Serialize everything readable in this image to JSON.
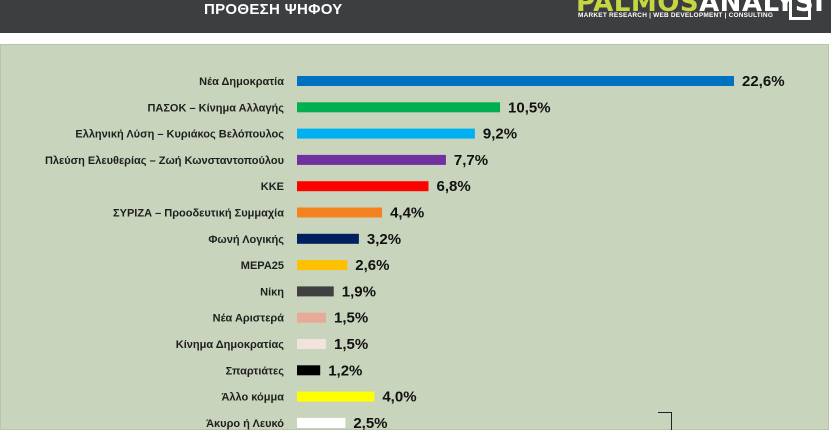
{
  "header": {
    "title": "ΠΡΟΘΕΣΗ ΨΗΦΟΥ",
    "logo_part1": "PALMOS",
    "logo_part2": "ANALYSIS",
    "logo_tagline": "MARKET RESEARCH | WEB DEVELOPMENT | CONSULTING"
  },
  "chart_data": {
    "type": "bar",
    "orientation": "horizontal",
    "title": "ΠΡΟΘΕΣΗ ΨΗΦΟΥ",
    "categories": [
      "Νέα Δημοκρατία",
      "ΠΑΣΟΚ – Κίνημα Αλλαγής",
      "Ελληνική Λύση – Κυριάκος Βελόπουλος",
      "Πλεύση Ελευθερίας – Ζωή Κωνσταντοπούλου",
      "ΚΚΕ",
      "ΣΥΡΙΖΑ – Προοδευτική Συμμαχία",
      "Φωνή Λογικής",
      "ΜΕΡΑ25",
      "Νίκη",
      "Νέα Αριστερά",
      "Κίνημα Δημοκρατίας",
      "Σπαρτιάτες",
      "Άλλο κόμμα",
      "Άκυρο ή Λευκό"
    ],
    "values": [
      22.6,
      10.5,
      9.2,
      7.7,
      6.8,
      4.4,
      3.2,
      2.6,
      1.9,
      1.5,
      1.5,
      1.2,
      4.0,
      2.5
    ],
    "value_labels": [
      "22,6%",
      "10,5%",
      "9,2%",
      "7,7%",
      "6,8%",
      "4,4%",
      "3,2%",
      "2,6%",
      "1,9%",
      "1,5%",
      "1,5%",
      "1,2%",
      "4,0%",
      "2,5%"
    ],
    "colors": [
      "#0070c0",
      "#00b050",
      "#00b0f0",
      "#7030a0",
      "#ff0000",
      "#f58220",
      "#002060",
      "#ffc000",
      "#404040",
      "#e6aa96",
      "#f2e4dc",
      "#000000",
      "#ffff00",
      "#ffffff"
    ],
    "grid": false,
    "legend": "none"
  }
}
